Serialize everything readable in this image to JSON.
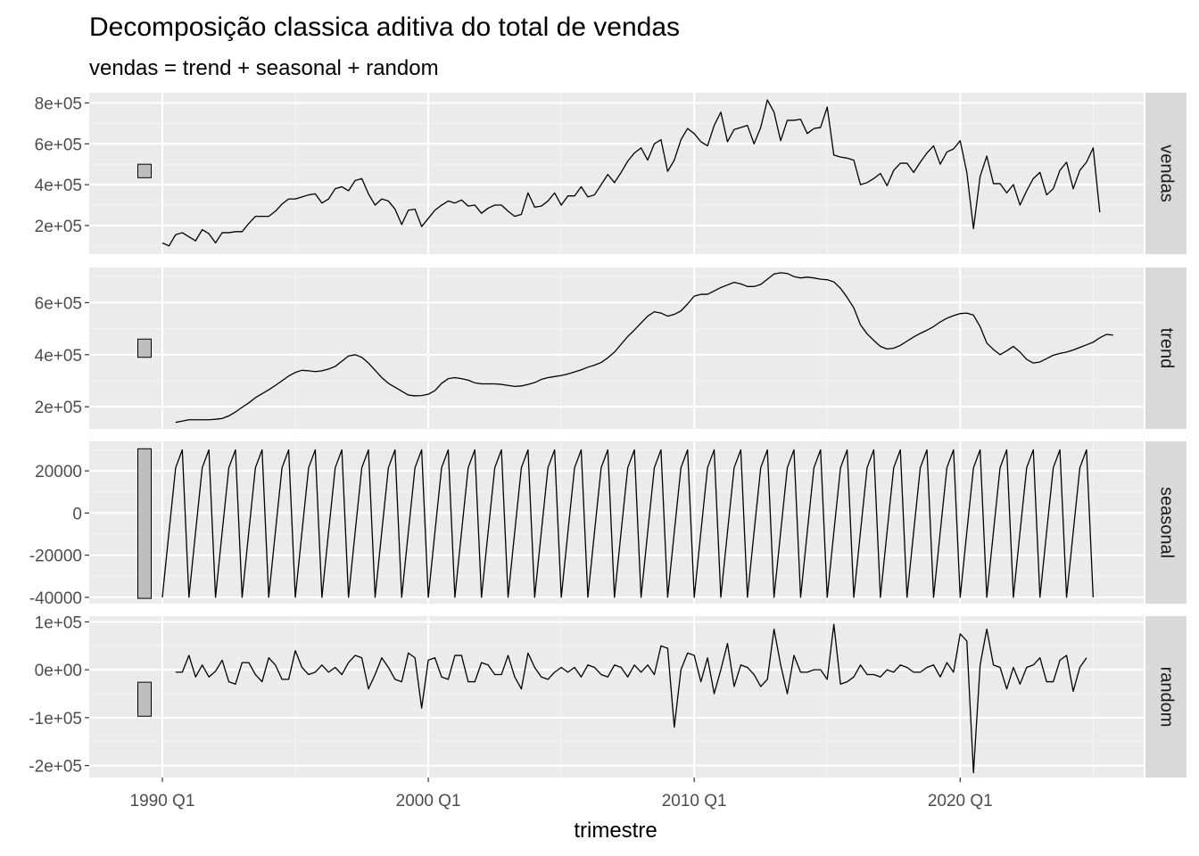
{
  "chart_data": {
    "type": "line",
    "title": "Decomposição classica aditiva do total de vendas",
    "subtitle": "vendas = trend + seasonal + random",
    "xlabel": "trimestre",
    "x_ticks": [
      "1990 Q1",
      "2000 Q1",
      "2010 Q1",
      "2020 Q1"
    ],
    "x_tick_values": [
      1990,
      2000,
      2010,
      2020
    ],
    "x_range": [
      1987.25,
      2026.9
    ],
    "grid": true,
    "panel_background": "#ebebeb",
    "strip_background": "#d9d9d9",
    "line_color": "#000000",
    "bar_color": "#bebebe",
    "panels": [
      {
        "name": "vendas",
        "ylim": [
          60000,
          850000
        ],
        "y_ticks": [
          200000,
          400000,
          600000,
          800000
        ],
        "y_tick_labels": [
          "2e+05",
          "4e+05",
          "6e+05",
          "8e+05"
        ],
        "scale_bar": [
          434000,
          500000
        ],
        "x_start": 1990.0,
        "values": [
          115000,
          100000,
          155000,
          165000,
          145000,
          125000,
          180000,
          160000,
          115000,
          165000,
          165000,
          170000,
          170000,
          210000,
          245000,
          245000,
          245000,
          270000,
          305000,
          330000,
          330000,
          340000,
          350000,
          355000,
          310000,
          330000,
          380000,
          390000,
          370000,
          420000,
          430000,
          355000,
          300000,
          330000,
          320000,
          280000,
          205000,
          275000,
          280000,
          195000,
          235000,
          275000,
          300000,
          320000,
          310000,
          325000,
          295000,
          300000,
          260000,
          285000,
          300000,
          300000,
          270000,
          245000,
          255000,
          360000,
          290000,
          295000,
          320000,
          360000,
          300000,
          345000,
          345000,
          390000,
          340000,
          350000,
          400000,
          450000,
          410000,
          460000,
          515000,
          555000,
          580000,
          520000,
          600000,
          620000,
          465000,
          520000,
          620000,
          675000,
          650000,
          610000,
          590000,
          690000,
          755000,
          610000,
          670000,
          680000,
          690000,
          600000,
          680000,
          815000,
          755000,
          615000,
          715000,
          715000,
          720000,
          650000,
          675000,
          680000,
          780000,
          545000,
          535000,
          530000,
          520000,
          400000,
          410000,
          430000,
          455000,
          395000,
          470000,
          505000,
          505000,
          460000,
          510000,
          555000,
          590000,
          500000,
          560000,
          575000,
          615000,
          460000,
          185000,
          440000,
          540000,
          405000,
          405000,
          360000,
          400000,
          300000,
          370000,
          430000,
          460000,
          350000,
          380000,
          470000,
          510000,
          380000,
          470000,
          510000,
          580000,
          265000
        ]
      },
      {
        "name": "trend",
        "ylim": [
          115000,
          735000
        ],
        "y_ticks": [
          200000,
          400000,
          600000
        ],
        "y_tick_labels": [
          "2e+05",
          "4e+05",
          "6e+05"
        ],
        "scale_bar": [
          390000,
          460000
        ],
        "x_start": 1990.5,
        "values": [
          140000,
          145000,
          150000,
          150000,
          150000,
          150000,
          152000,
          155000,
          165000,
          180000,
          198000,
          215000,
          235000,
          250000,
          265000,
          282000,
          300000,
          318000,
          332000,
          340000,
          338000,
          335000,
          338000,
          345000,
          355000,
          375000,
          395000,
          400000,
          390000,
          368000,
          340000,
          312000,
          290000,
          275000,
          260000,
          245000,
          242000,
          243000,
          248000,
          262000,
          290000,
          308000,
          312000,
          308000,
          302000,
          292000,
          288000,
          288000,
          288000,
          286000,
          282000,
          278000,
          280000,
          286000,
          293000,
          305000,
          312000,
          316000,
          320000,
          326000,
          334000,
          342000,
          352000,
          360000,
          370000,
          388000,
          410000,
          440000,
          470000,
          495000,
          522000,
          548000,
          565000,
          560000,
          548000,
          555000,
          568000,
          595000,
          625000,
          632000,
          632000,
          645000,
          658000,
          668000,
          678000,
          672000,
          662000,
          662000,
          670000,
          690000,
          710000,
          715000,
          712000,
          700000,
          695000,
          698000,
          695000,
          690000,
          688000,
          680000,
          655000,
          620000,
          580000,
          515000,
          480000,
          455000,
          432000,
          422000,
          425000,
          436000,
          452000,
          468000,
          482000,
          494000,
          508000,
          526000,
          540000,
          550000,
          558000,
          560000,
          552000,
          508000,
          445000,
          420000,
          400000,
          415000,
          432000,
          410000,
          382000,
          368000,
          372000,
          385000,
          398000,
          405000,
          410000,
          418000,
          428000,
          438000,
          448000,
          465000,
          478000,
          475000
        ]
      },
      {
        "name": "seasonal",
        "ylim": [
          -43000,
          34000
        ],
        "y_ticks": [
          -40000,
          -20000,
          0,
          20000
        ],
        "y_tick_labels": [
          "-40000",
          "-20000",
          "0",
          "20000"
        ],
        "scale_bar": [
          -40500,
          30500
        ],
        "x_start": 1990.0,
        "pattern": [
          -40000,
          -9000,
          21500,
          30000
        ],
        "periods": 141
      },
      {
        "name": "random",
        "ylim": [
          -225000,
          112000
        ],
        "y_ticks": [
          -200000,
          -100000,
          0,
          100000
        ],
        "y_tick_labels": [
          "-2e+05",
          "-1e+05",
          "0e+00",
          "1e+05"
        ],
        "scale_bar": [
          -97000,
          -26000
        ],
        "x_start": 1990.5,
        "values": [
          -5000,
          -5000,
          30000,
          -15000,
          10000,
          -15000,
          -3000,
          20000,
          -25000,
          -30000,
          15000,
          15000,
          -10000,
          -25000,
          25000,
          10000,
          -20000,
          -20000,
          40000,
          5000,
          -10000,
          -5000,
          10000,
          -5000,
          5000,
          -10000,
          15000,
          30000,
          25000,
          -40000,
          -10000,
          25000,
          5000,
          -20000,
          -25000,
          35000,
          25000,
          -80000,
          20000,
          25000,
          -15000,
          -20000,
          30000,
          30000,
          -25000,
          -25000,
          15000,
          10000,
          -10000,
          -10000,
          30000,
          -15000,
          -40000,
          35000,
          5000,
          -15000,
          -20000,
          -5000,
          5000,
          -5000,
          5000,
          -15000,
          10000,
          5000,
          -10000,
          -15000,
          10000,
          5000,
          -15000,
          10000,
          -5000,
          10000,
          -10000,
          50000,
          45000,
          -120000,
          0,
          35000,
          30000,
          -25000,
          25000,
          -50000,
          0,
          55000,
          -35000,
          10000,
          5000,
          -10000,
          -35000,
          -20000,
          85000,
          10000,
          -50000,
          30000,
          -5000,
          -5000,
          0,
          0,
          -20000,
          95000,
          -30000,
          -25000,
          -15000,
          10000,
          -10000,
          -10000,
          -15000,
          0,
          -5000,
          10000,
          5000,
          -5000,
          -5000,
          5000,
          10000,
          -15000,
          15000,
          -5000,
          75000,
          60000,
          -215000,
          10000,
          85000,
          10000,
          5000,
          -40000,
          5000,
          -30000,
          5000,
          10000,
          25000,
          -25000,
          -25000,
          20000,
          30000,
          -45000,
          5000,
          25000
        ]
      }
    ],
    "strip_labels": [
      "vendas",
      "trend",
      "seasonal",
      "random"
    ]
  }
}
